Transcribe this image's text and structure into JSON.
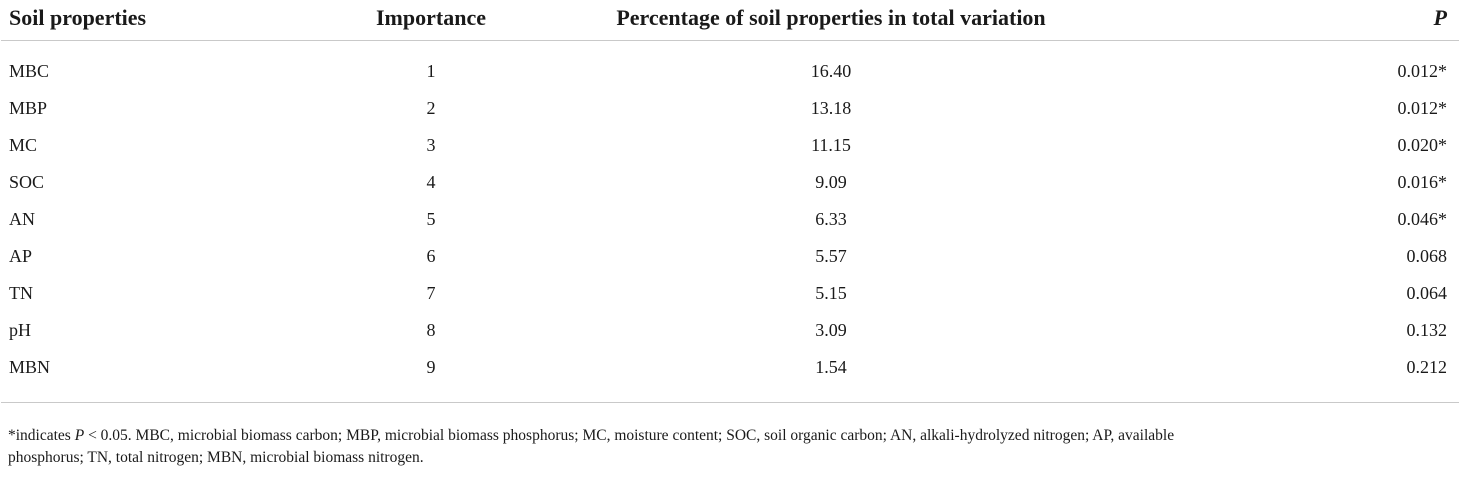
{
  "table": {
    "headers": [
      "Soil properties",
      "Importance",
      "Percentage of soil properties in total variation",
      "P"
    ],
    "rows": [
      [
        "MBC",
        "1",
        "16.40",
        "0.012*"
      ],
      [
        "MBP",
        "2",
        "13.18",
        "0.012*"
      ],
      [
        "MC",
        "3",
        "11.15",
        "0.020*"
      ],
      [
        "SOC",
        "4",
        "9.09",
        "0.016*"
      ],
      [
        "AN",
        "5",
        "6.33",
        "0.046*"
      ],
      [
        "AP",
        "6",
        "5.57",
        "0.068"
      ],
      [
        "TN",
        "7",
        "5.15",
        "0.064"
      ],
      [
        "pH",
        "8",
        "3.09",
        "0.132"
      ],
      [
        "MBN",
        "9",
        "1.54",
        "0.212"
      ]
    ]
  },
  "footnote": {
    "prefix": "*indicates ",
    "p_symbol": "P",
    "line1_rest": " < 0.05. MBC, microbial biomass carbon; MBP, microbial biomass phosphorus; MC, moisture content; SOC, soil organic carbon; AN, alkali-hydrolyzed nitrogen; AP, available",
    "line2": "phosphorus; TN, total nitrogen; MBN, microbial biomass nitrogen."
  }
}
